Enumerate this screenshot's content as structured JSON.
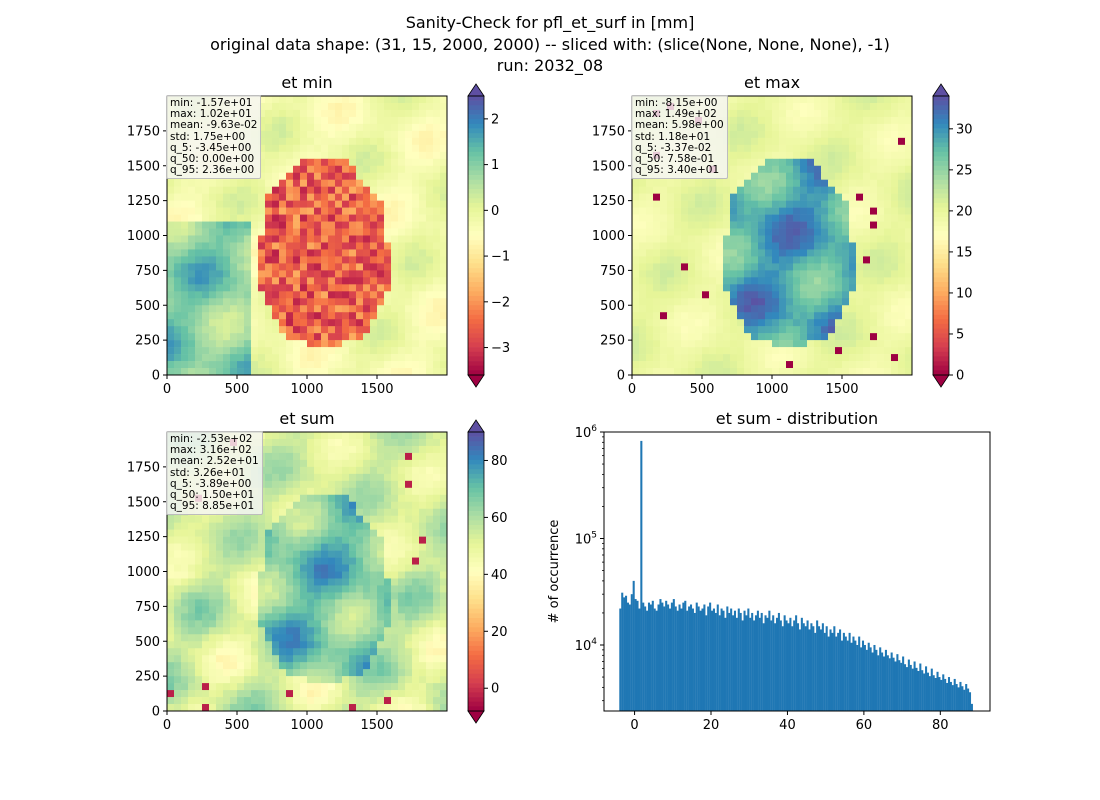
{
  "suptitle": {
    "line1": "Sanity-Check for pfl_et_surf in [mm]",
    "line2": "original data shape: (31, 15, 2000, 2000) -- sliced with: (slice(None, None, None), -1)",
    "line3": "run: 2032_08"
  },
  "chart_data": [
    {
      "type": "heatmap",
      "title": "et min",
      "x_ticks": [
        "0",
        "500",
        "1000",
        "1500"
      ],
      "y_ticks": [
        "0",
        "250",
        "500",
        "750",
        "1000",
        "1250",
        "1500",
        "1750"
      ],
      "colorbar": {
        "cmap": "Spectral",
        "extend": "both",
        "range": [
          -3.6,
          2.5
        ],
        "ticks": [
          "2",
          "1",
          "0",
          "−1",
          "−2",
          "−3"
        ]
      },
      "stats": [
        "min: -1.57e+01",
        "max: 1.02e+01",
        "mean: -9.63e-02",
        "std: 1.75e+00",
        "q_5: -3.45e+00",
        "q_50: 0.00e+00",
        "q_95: 2.36e+00"
      ]
    },
    {
      "type": "heatmap",
      "title": "et max",
      "x_ticks": [
        "0",
        "500",
        "1000",
        "1500"
      ],
      "y_ticks": [
        "0",
        "250",
        "500",
        "750",
        "1000",
        "1250",
        "1500",
        "1750"
      ],
      "colorbar": {
        "cmap": "Spectral",
        "extend": "both",
        "range": [
          0,
          34
        ],
        "ticks": [
          "30",
          "25",
          "20",
          "15",
          "10",
          "5",
          "0"
        ]
      },
      "stats": [
        "min: -8.15e+00",
        "max: 1.49e+02",
        "mean: 5.98e+00",
        "std: 1.18e+01",
        "q_5: -3.37e-02",
        "q_50: 7.58e-01",
        "q_95: 3.40e+01"
      ]
    },
    {
      "type": "heatmap",
      "title": "et sum",
      "x_ticks": [
        "0",
        "500",
        "1000",
        "1500"
      ],
      "y_ticks": [
        "0",
        "250",
        "500",
        "750",
        "1000",
        "1250",
        "1500",
        "1750"
      ],
      "colorbar": {
        "cmap": "Spectral",
        "extend": "both",
        "range": [
          -8,
          90
        ],
        "ticks": [
          "80",
          "60",
          "40",
          "20",
          "0"
        ]
      },
      "stats": [
        "min: -2.53e+02",
        "max: 3.16e+02",
        "mean: 2.52e+01",
        "std: 3.26e+01",
        "q_5: -3.89e+00",
        "q_50: 1.50e+01",
        "q_95: 8.85e+01"
      ]
    },
    {
      "type": "bar",
      "title": "et sum - distribution",
      "ylabel": "# of occurrence",
      "xlabel": "",
      "yscale": "log",
      "xlim": [
        -8,
        93
      ],
      "ylim": [
        2400,
        1000000
      ],
      "x_ticks": [
        0,
        20,
        40,
        60,
        80
      ],
      "y_ticks": [
        10000,
        100000,
        1000000
      ],
      "bins": {
        "start": -4,
        "end": 88.5,
        "count": 185
      },
      "counts": [
        22000,
        31000,
        28000,
        29000,
        25000,
        24000,
        30000,
        40000,
        27000,
        26000,
        22000,
        825000,
        25000,
        23000,
        21000,
        25000,
        24000,
        26000,
        22000,
        21000,
        24000,
        27000,
        25000,
        23000,
        26000,
        24000,
        22000,
        25000,
        27000,
        23000,
        21000,
        24000,
        22000,
        25000,
        26000,
        21000,
        23000,
        24000,
        22000,
        20000,
        25000,
        23000,
        21000,
        22000,
        24000,
        19000,
        23000,
        25000,
        21000,
        22000,
        20000,
        24000,
        19000,
        22000,
        21000,
        18000,
        23000,
        20000,
        22000,
        19000,
        21000,
        18000,
        22000,
        20000,
        17000,
        21000,
        19000,
        22000,
        18000,
        20000,
        17000,
        19000,
        21000,
        18000,
        20000,
        16000,
        19000,
        18000,
        21000,
        17000,
        19000,
        16000,
        18000,
        20000,
        17000,
        15000,
        19000,
        17000,
        16000,
        18000,
        15000,
        17000,
        19000,
        16000,
        14000,
        18000,
        16000,
        15000,
        17000,
        14000,
        16000,
        15000,
        13000,
        17000,
        15000,
        14000,
        16000,
        13000,
        15000,
        12000,
        14000,
        13000,
        15000,
        12000,
        13000,
        14000,
        11000,
        13000,
        12000,
        11000,
        13000,
        10500,
        12000,
        11000,
        10000,
        12000,
        9500,
        11000,
        10000,
        9000,
        10500,
        9500,
        8500,
        10000,
        9000,
        8000,
        9500,
        8500,
        7800,
        9000,
        8000,
        7500,
        8500,
        7600,
        7000,
        8200,
        7200,
        6800,
        7800,
        6600,
        6200,
        7300,
        6500,
        6000,
        7000,
        6100,
        5700,
        6700,
        5800,
        5400,
        6300,
        5500,
        5100,
        6000,
        5200,
        4900,
        5600,
        5000,
        4700,
        5300,
        4800,
        4400,
        5000,
        4500,
        4200,
        4800,
        4300,
        4000,
        4500,
        4100,
        3800,
        4300,
        3900,
        3600,
        2800
      ]
    }
  ]
}
